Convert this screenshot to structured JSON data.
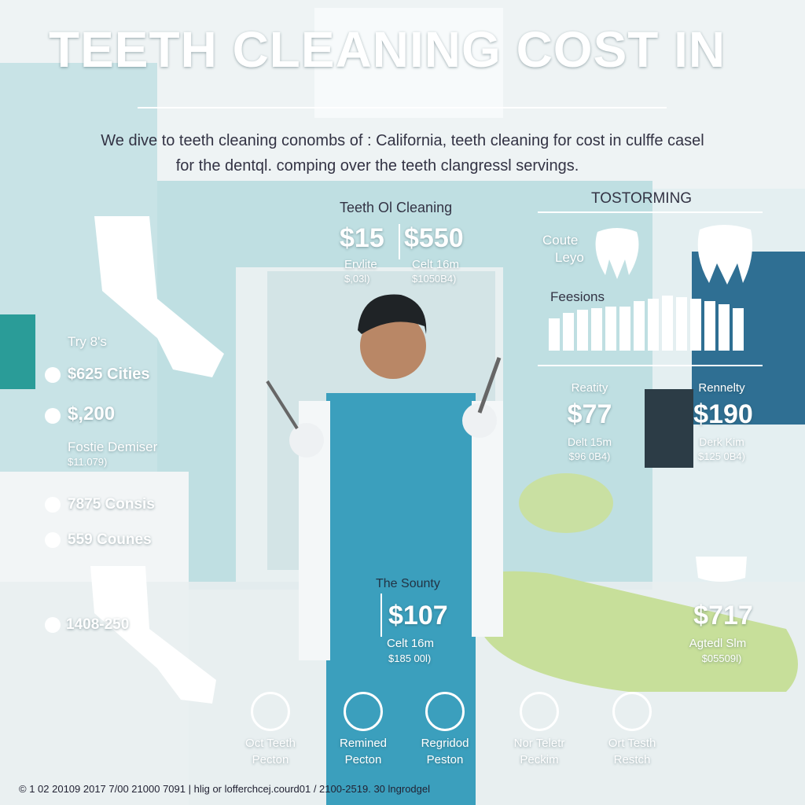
{
  "header": {
    "title": "TEETH CLEANING COST IN",
    "intro": [
      "We dive to teeth cleaning conombs of : California, teeth cleaning for cost in culffe casel",
      "for the dentql. comping over the teeth clangressl servings."
    ]
  },
  "center_top": {
    "heading": "Teeth Ol Cleaning",
    "left": {
      "price": "$15",
      "label": "Ervlite",
      "sub": "$,03l)"
    },
    "right": {
      "price": "$550",
      "label": "Celt 16m",
      "sub": "$1050B4)"
    }
  },
  "right_panel": {
    "heading": "TOSTORMING",
    "tooth_label": [
      "Coute",
      "Leyo"
    ],
    "chart_label": "Feesions",
    "items": [
      {
        "label": "Reatity",
        "price": "$77",
        "sub1": "Delt 15m",
        "sub2": "$96 0B4)"
      },
      {
        "label": "Rennelty",
        "price": "$190",
        "sub1": "Derk Kim",
        "sub2": "$125 0B4)"
      }
    ]
  },
  "left_panel": {
    "heading": "Try 8's",
    "items": [
      "$625 Cities",
      "$,200"
    ],
    "note": [
      "Fostie Demiser",
      "$11.079)"
    ],
    "items2": [
      "7875 Consis",
      "559 Counes"
    ],
    "bottom": "1408-250"
  },
  "center_bottom": {
    "heading": "The Sounty",
    "price": "$107",
    "sub1": "Celt 16m",
    "sub2": "$185 00l)"
  },
  "right_bottom": {
    "price": "$717",
    "sub1": "Agtedl Slm",
    "sub2": "$05509l)"
  },
  "icons": [
    [
      "Oct Teeth",
      "Pecton"
    ],
    [
      "Remined",
      "Pecton"
    ],
    [
      "Regridod",
      "Peston"
    ],
    [
      "Nor Teletr",
      "Peckim"
    ],
    [
      "Ort Testh",
      "Restch"
    ]
  ],
  "footer": "© 1 02 20109 2017 7/00 21000 7091 | hlig or lofferchcej.courd01 / 2100-2519. 30 lngrodgel"
}
